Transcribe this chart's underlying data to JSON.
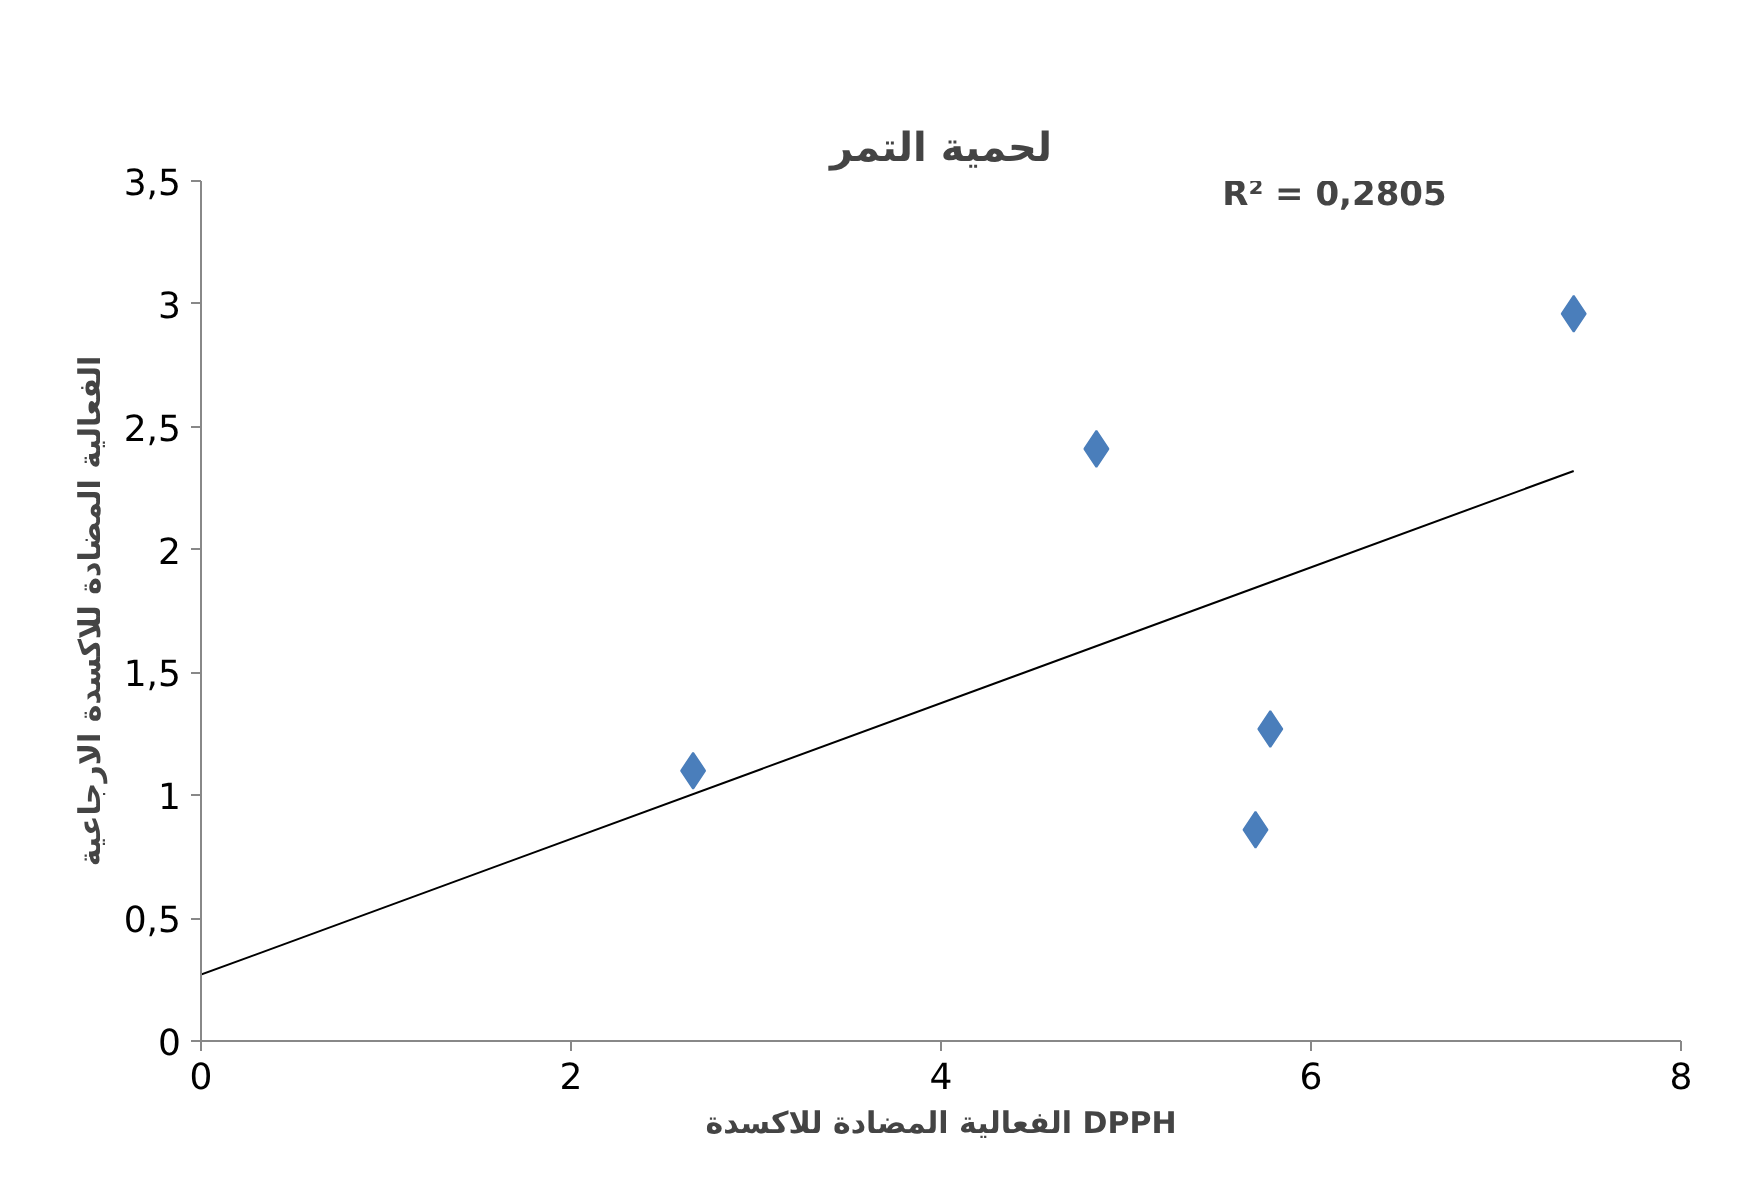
{
  "chart_data": {
    "type": "scatter",
    "title": "لحمية التمر",
    "xlabel": "الفعالية المضادة للاكسدة DPPH",
    "ylabel": "الفعالية المضادة للاكسدة الارجاعية",
    "annotations": [
      "R² = 0,2805"
    ],
    "series": [
      {
        "color": "#4a7ebb",
        "marker": "diamond",
        "x": [
          2.66,
          4.84,
          5.7,
          5.78,
          7.42
        ],
        "values": [
          1.1,
          2.41,
          0.86,
          1.27,
          2.96
        ]
      },
      {
        "type": "line",
        "color": "#000000",
        "marker": "none",
        "x": [
          0,
          7.42
        ],
        "values": [
          0.27,
          2.32
        ]
      }
    ],
    "xlim": [
      0,
      8
    ],
    "xticks": [
      0,
      2,
      4,
      6,
      8
    ],
    "ylim": [
      0,
      3.5
    ],
    "yticks": [
      0,
      {
        "value": 0.5,
        "label": "0,5"
      },
      1,
      {
        "value": 1.5,
        "label": "1,5"
      },
      2,
      {
        "value": 2.5,
        "label": "2,5"
      },
      3,
      {
        "value": 3.5,
        "label": "3,5"
      }
    ],
    "grid": false
  }
}
